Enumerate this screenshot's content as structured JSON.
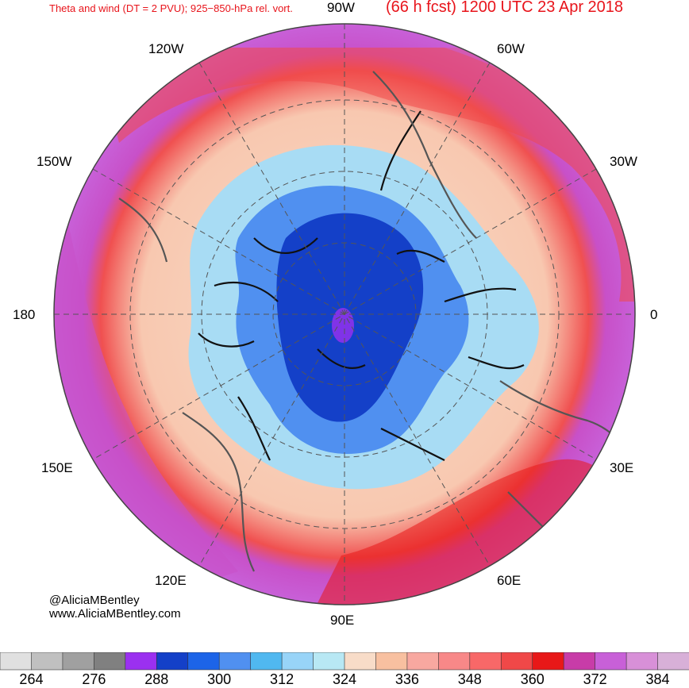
{
  "header": {
    "left_title": "Theta and wind (DT = 2 PVU); 925−850-hPa rel. vort.",
    "right_title": "(66 h fcst) 1200 UTC 23 Apr 2018"
  },
  "map": {
    "projection": "north polar stereographic",
    "longitude_labels": {
      "top": "90W",
      "upper_left": "120W",
      "upper_right": "60W",
      "mid_upper_left": "150W",
      "mid_upper_right": "30W",
      "left": "180",
      "right": "0",
      "mid_lower_left": "150E",
      "mid_lower_right": "30E",
      "lower_left": "120E",
      "lower_right": "60E",
      "bottom": "90E"
    },
    "colors": {
      "polar_cold": "#1440c8",
      "cold": "#5090f0",
      "cool": "#a8dcf4",
      "mild": "#f8d8c4",
      "warm": "#f8a8a0",
      "hot": "#f03c3c",
      "very_hot": "#c850c8",
      "hottest": "#d8a0d8"
    }
  },
  "credits": {
    "handle": "@AliciaMBentley",
    "website": "www.AliciaMBentley.com"
  },
  "colorbar": {
    "ticks": [
      "264",
      "276",
      "288",
      "300",
      "312",
      "324",
      "336",
      "348",
      "360",
      "372",
      "384"
    ],
    "colors": [
      "#e0e0e0",
      "#c0c0c0",
      "#a0a0a0",
      "#808080",
      "#9b30f0",
      "#1440c8",
      "#1c64e8",
      "#5090f0",
      "#50b8f0",
      "#98d4f8",
      "#b8e8f4",
      "#f8dcc8",
      "#f8c0a0",
      "#f8a8a0",
      "#f88888",
      "#f86868",
      "#f04848",
      "#e81818",
      "#c83ca8",
      "#c860d8",
      "#d890d8",
      "#d8b0d8"
    ]
  }
}
